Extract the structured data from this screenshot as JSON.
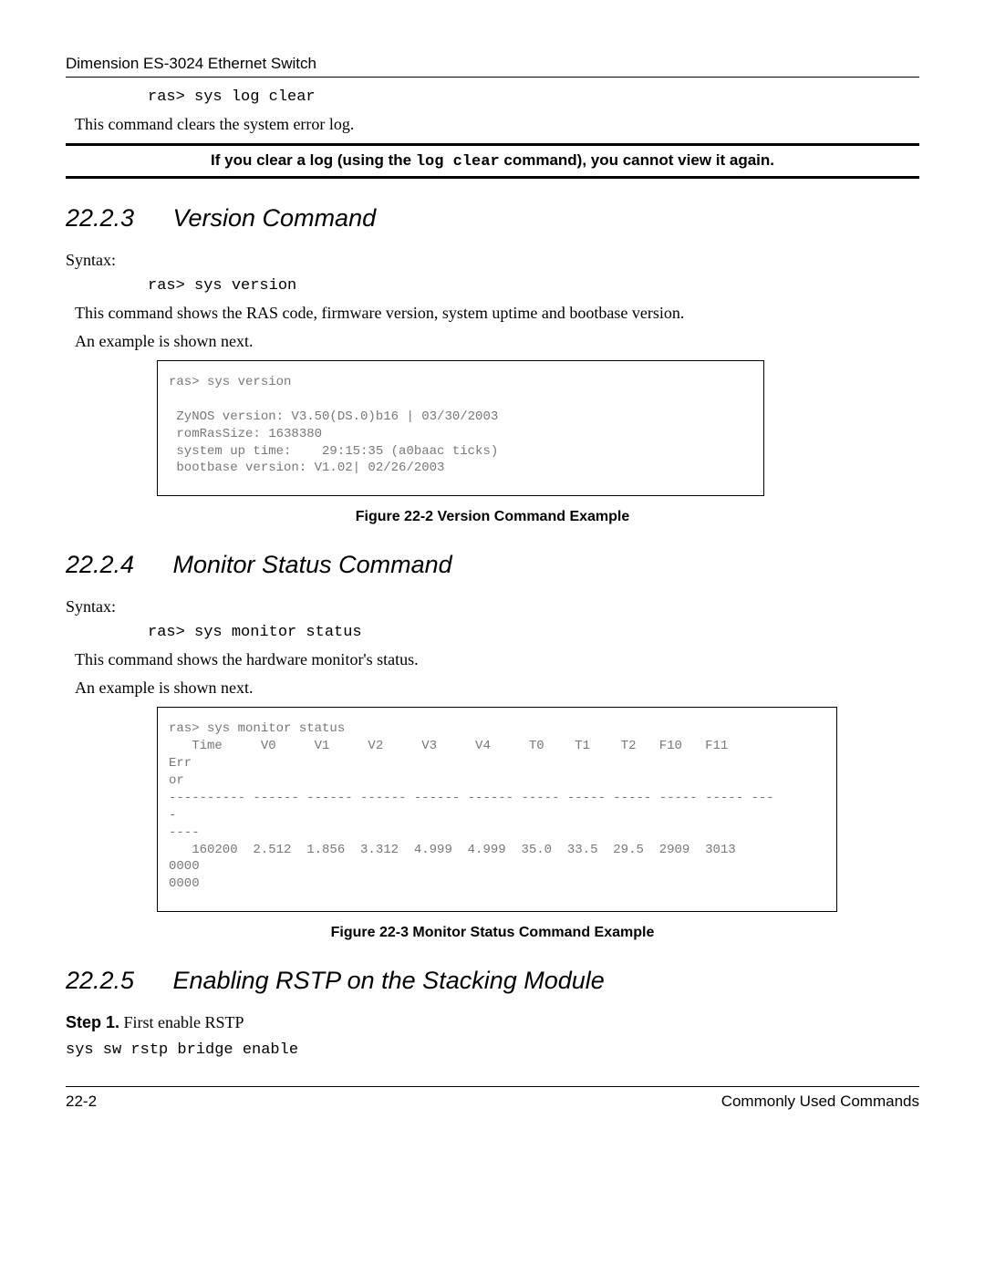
{
  "header": {
    "title": "Dimension ES-3024 Ethernet Switch"
  },
  "intro": {
    "cmd": "ras> sys log clear",
    "desc": "This command clears the system error log."
  },
  "note": {
    "pre": "If you clear a log (using the ",
    "mono": "log clear",
    "post": " command), you cannot view it again."
  },
  "sec223": {
    "num": "22.2.3",
    "title": "Version Command",
    "syntax_label": "Syntax:",
    "cmd": "ras> sys version",
    "desc": "This command shows the RAS code, firmware version, system uptime and bootbase version.",
    "example_label": "An example is shown next.",
    "example": "ras> sys version\n\n ZyNOS version: V3.50(DS.0)b16 | 03/30/2003\n romRasSize: 1638380\n system up time:    29:15:35 (a0baac ticks)\n bootbase version: V1.02| 02/26/2003",
    "caption": "Figure 22-2 Version Command Example"
  },
  "sec224": {
    "num": "22.2.4",
    "title": "Monitor Status Command",
    "syntax_label": "Syntax:",
    "cmd": "ras> sys monitor status",
    "desc": "This command shows the hardware monitor's status.",
    "example_label": "An example is shown next.",
    "example": "ras> sys monitor status\n   Time     V0     V1     V2     V3     V4     T0    T1    T2   F10   F11   \nErr\nor\n---------- ------ ------ ------ ------ ------ ----- ----- ----- ----- ----- ---\n-\n----\n   160200  2.512  1.856  3.312  4.999  4.999  35.0  33.5  29.5  2909  3013  \n0000\n0000",
    "caption": "Figure 22-3 Monitor Status Command Example"
  },
  "sec225": {
    "num": "22.2.5",
    "title": "Enabling RSTP on the Stacking Module",
    "step_label": "Step 1.",
    "step_text": " First enable RSTP",
    "code": "sys sw rstp bridge enable"
  },
  "footer": {
    "left": "22-2",
    "right": "Commonly Used Commands"
  }
}
